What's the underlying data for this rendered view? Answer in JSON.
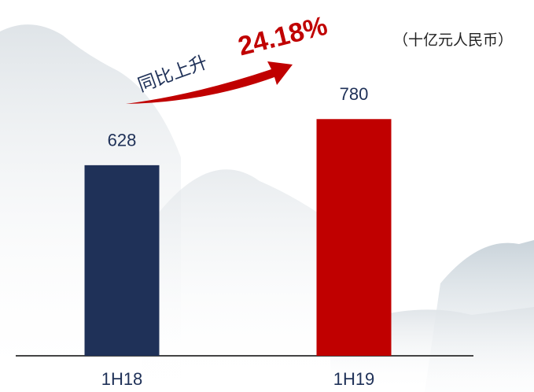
{
  "chart_data": {
    "type": "bar",
    "unit_label": "（十亿元人民币）",
    "annotation": {
      "text": "同比上升",
      "highlight": "24.18%"
    },
    "categories": [
      "1H18",
      "1H19"
    ],
    "values": [
      628,
      780
    ],
    "colors": [
      "#1f3158",
      "#c00000"
    ],
    "ylim": [
      0,
      830
    ]
  }
}
